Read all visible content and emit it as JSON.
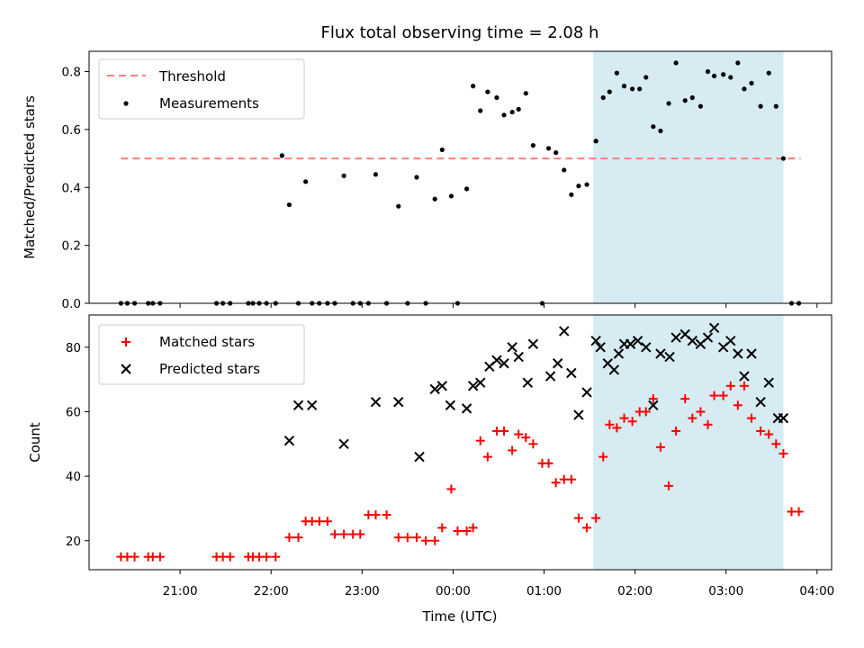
{
  "chart_data": [
    {
      "type": "scatter",
      "title": "Flux total observing time = 2.08 h",
      "xlabel": "",
      "ylabel": "Matched/Predicted stars",
      "ylim": [
        0,
        0.87
      ],
      "yticks": [
        "0.0",
        "0.2",
        "0.4",
        "0.6",
        "0.8"
      ],
      "xlim_hours": [
        20.0,
        28.16
      ],
      "grid": false,
      "legend_position": "top-left",
      "highlight_span_hours": [
        25.54,
        27.63
      ],
      "highlight_color": "#add8e6",
      "threshold": {
        "name": "Threshold",
        "value": 0.5,
        "x_start_hours": 20.35,
        "x_end_hours": 27.82,
        "color": "#ff7f7f"
      },
      "series": [
        {
          "name": "Measurements",
          "color": "#000000",
          "marker": "dot",
          "x_hours": [
            20.35,
            20.42,
            20.5,
            20.65,
            20.7,
            20.78,
            21.4,
            21.47,
            21.55,
            21.75,
            21.8,
            21.87,
            21.95,
            22.05,
            22.12,
            22.2,
            22.3,
            22.38,
            22.45,
            22.53,
            22.62,
            22.7,
            22.8,
            22.9,
            22.98,
            23.07,
            23.15,
            23.27,
            23.4,
            23.5,
            23.6,
            23.7,
            23.8,
            23.88,
            23.98,
            24.05,
            24.15,
            24.22,
            24.3,
            24.38,
            24.48,
            24.56,
            24.65,
            24.72,
            24.8,
            24.88,
            24.98,
            25.05,
            25.13,
            25.22,
            25.3,
            25.38,
            25.47,
            25.57,
            25.65,
            25.72,
            25.8,
            25.88,
            25.97,
            26.05,
            26.12,
            26.2,
            26.28,
            26.37,
            26.45,
            26.55,
            26.63,
            26.72,
            26.8,
            26.87,
            26.97,
            27.05,
            27.13,
            27.2,
            27.28,
            27.38,
            27.47,
            27.55,
            27.63,
            27.72,
            27.8
          ],
          "y": [
            0,
            0,
            0,
            0,
            0,
            0,
            0,
            0,
            0,
            0,
            0,
            0,
            0,
            0,
            0.51,
            0.34,
            0,
            0.42,
            0,
            0,
            0,
            0,
            0.44,
            0,
            0,
            0,
            0.445,
            0,
            0.335,
            0,
            0.435,
            0,
            0.36,
            0.53,
            0.37,
            0,
            0.395,
            0.75,
            0.665,
            0.73,
            0.71,
            0.65,
            0.66,
            0.67,
            0.725,
            0.545,
            0,
            0.535,
            0.52,
            0.46,
            0.375,
            0.405,
            0.41,
            0.56,
            0.71,
            0.73,
            0.795,
            0.75,
            0.74,
            0.74,
            0.78,
            0.61,
            0.595,
            0.69,
            0.83,
            0.7,
            0.71,
            0.68,
            0.8,
            0.785,
            0.79,
            0.78,
            0.83,
            0.74,
            0.76,
            0.68,
            0.795,
            0.68,
            0.5,
            0,
            0
          ]
        }
      ]
    },
    {
      "type": "scatter",
      "title": "",
      "xlabel": "Time (UTC)",
      "ylabel": "Count",
      "ylim": [
        11,
        90
      ],
      "yticks": [
        "20",
        "40",
        "60",
        "80"
      ],
      "xticks": [
        "21:00",
        "22:00",
        "23:00",
        "00:00",
        "01:00",
        "02:00",
        "03:00",
        "04:00"
      ],
      "xlim_hours": [
        20.0,
        28.16
      ],
      "grid": false,
      "legend_position": "top-left",
      "highlight_span_hours": [
        25.54,
        27.63
      ],
      "highlight_color": "#add8e6",
      "series": [
        {
          "name": "Matched stars",
          "color": "#ff0000",
          "marker": "plus",
          "x_hours": [
            20.35,
            20.42,
            20.5,
            20.65,
            20.7,
            20.78,
            21.4,
            21.47,
            21.55,
            21.75,
            21.8,
            21.87,
            21.95,
            22.05,
            22.2,
            22.3,
            22.38,
            22.45,
            22.53,
            22.62,
            22.7,
            22.8,
            22.9,
            22.98,
            23.07,
            23.15,
            23.27,
            23.4,
            23.5,
            23.6,
            23.7,
            23.8,
            23.88,
            23.98,
            24.05,
            24.15,
            24.22,
            24.3,
            24.38,
            24.48,
            24.56,
            24.65,
            24.72,
            24.8,
            24.88,
            24.98,
            25.05,
            25.13,
            25.22,
            25.3,
            25.38,
            25.47,
            25.57,
            25.65,
            25.72,
            25.8,
            25.88,
            25.97,
            26.05,
            26.12,
            26.2,
            26.28,
            26.37,
            26.45,
            26.55,
            26.63,
            26.72,
            26.8,
            26.87,
            26.97,
            27.05,
            27.13,
            27.2,
            27.28,
            27.38,
            27.47,
            27.55,
            27.63,
            27.72,
            27.8
          ],
          "y": [
            15,
            15,
            15,
            15,
            15,
            15,
            15,
            15,
            15,
            15,
            15,
            15,
            15,
            15,
            21,
            21,
            26,
            26,
            26,
            26,
            22,
            22,
            22,
            22,
            28,
            28,
            28,
            21,
            21,
            21,
            20,
            20,
            24,
            36,
            23,
            23,
            24,
            51,
            46,
            54,
            54,
            48,
            53,
            52,
            50,
            44,
            44,
            38,
            39,
            39,
            27,
            24,
            27,
            46,
            56,
            55,
            58,
            57,
            60,
            60,
            64,
            49,
            37,
            54,
            64,
            58,
            60,
            56,
            65,
            65,
            68,
            62,
            68,
            58,
            54,
            53,
            50,
            47,
            29,
            29
          ]
        },
        {
          "name": "Predicted stars",
          "color": "#000000",
          "marker": "x",
          "x_hours": [
            22.2,
            22.3,
            22.45,
            22.8,
            23.15,
            23.4,
            23.63,
            23.8,
            23.88,
            23.97,
            24.15,
            24.22,
            24.3,
            24.4,
            24.48,
            24.56,
            24.65,
            24.72,
            24.82,
            24.88,
            25.07,
            25.15,
            25.22,
            25.3,
            25.38,
            25.47,
            25.57,
            25.62,
            25.7,
            25.77,
            25.82,
            25.88,
            25.95,
            26.03,
            26.12,
            26.2,
            26.28,
            26.38,
            26.45,
            26.55,
            26.63,
            26.72,
            26.8,
            26.87,
            26.97,
            27.05,
            27.13,
            27.2,
            27.28,
            27.38,
            27.47,
            27.57,
            27.63
          ],
          "y": [
            51,
            62,
            62,
            50,
            63,
            63,
            46,
            67,
            68,
            62,
            61,
            68,
            69,
            74,
            76,
            75,
            80,
            77,
            69,
            81,
            71,
            75,
            85,
            72,
            59,
            66,
            82,
            80,
            75,
            73,
            78,
            81,
            81,
            82,
            80,
            62,
            78,
            77,
            83,
            84,
            82,
            81,
            83,
            86,
            80,
            82,
            78,
            71,
            78,
            63,
            69,
            58,
            58
          ]
        }
      ]
    }
  ]
}
